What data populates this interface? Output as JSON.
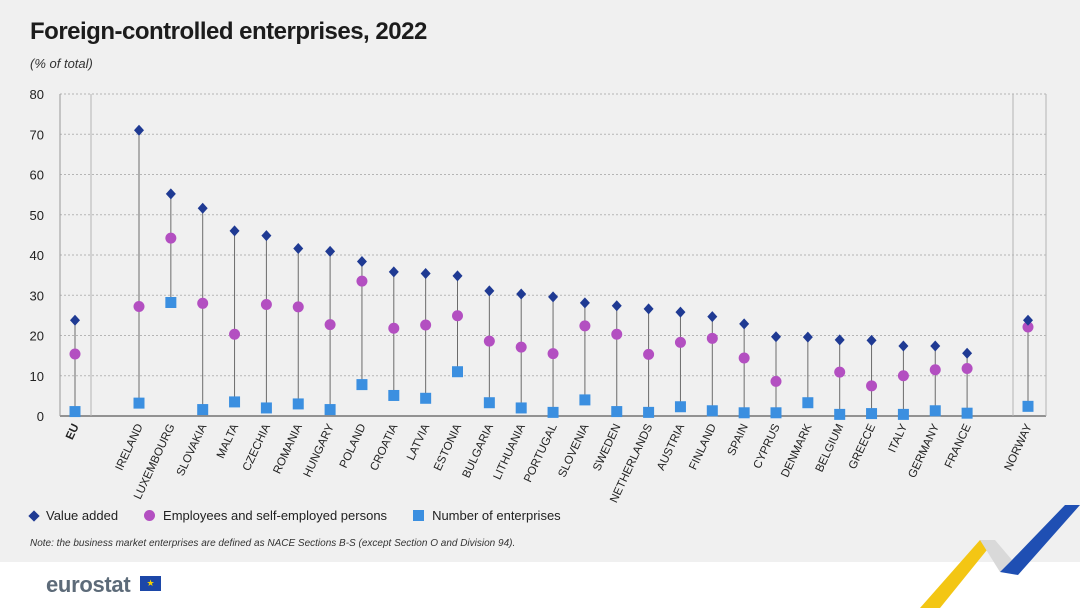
{
  "title": "Foreign-controlled enterprises, 2022",
  "subtitle": "(% of total)",
  "note": "Note: the business market enterprises are defined as NACE Sections B-S (except Section O and Division 94).",
  "brand": "eurostat",
  "legend": {
    "value_added": "Value added",
    "employees": "Employees and self-employed persons",
    "enterprises": "Number of enterprises"
  },
  "colors": {
    "value_added": "#1f3a93",
    "employees": "#b34fc1",
    "enterprises": "#3b8fe0",
    "panel": "#f0f0f0"
  },
  "chart_data": {
    "type": "scatter",
    "ylim": [
      0,
      80
    ],
    "yticks": [
      0,
      10,
      20,
      30,
      40,
      50,
      60,
      70,
      80
    ],
    "grid": true,
    "legend_position": "bottom-left",
    "categories": [
      "EU",
      "Ireland",
      "Luxembourg",
      "Slovakia",
      "Malta",
      "Czechia",
      "Romania",
      "Hungary",
      "Poland",
      "Croatia",
      "Latvia",
      "Estonia",
      "Bulgaria",
      "Lithuania",
      "Portugal",
      "Slovenia",
      "Sweden",
      "Netherlands",
      "Austria",
      "Finland",
      "Spain",
      "Cyprus",
      "Denmark",
      "Belgium",
      "Greece",
      "Italy",
      "Germany",
      "France",
      "Norway"
    ],
    "category_labels": [
      "EU",
      "IRELAND",
      "LUXEMBOURG",
      "SLOVAKIA",
      "MALTA",
      "CZECHIA",
      "ROMANIA",
      "HUNGARY",
      "POLAND",
      "CROATIA",
      "LATVIA",
      "ESTONIA",
      "BULGARIA",
      "LITHUANIA",
      "PORTUGAL",
      "SLOVENIA",
      "SWEDEN",
      "NETHERLANDS",
      "AUSTRIA",
      "FINLAND",
      "SPAIN",
      "CYPRUS",
      "DENMARK",
      "BELGIUM",
      "GREECE",
      "ITALY",
      "GERMANY",
      "FRANCE",
      "NORWAY"
    ],
    "series": [
      {
        "name": "Value added",
        "marker": "diamond",
        "values": [
          23.8,
          71.0,
          55.2,
          51.6,
          46.0,
          44.8,
          41.6,
          40.9,
          38.4,
          35.8,
          35.4,
          34.8,
          31.1,
          30.3,
          29.6,
          28.1,
          27.4,
          26.6,
          25.8,
          24.7,
          22.9,
          19.7,
          19.6,
          18.9,
          18.8,
          17.4,
          17.4,
          15.6,
          23.8
        ]
      },
      {
        "name": "Employees and self-employed persons",
        "marker": "circle",
        "values": [
          15.4,
          27.2,
          44.2,
          28.0,
          20.3,
          27.7,
          27.1,
          22.7,
          33.5,
          21.8,
          22.6,
          24.9,
          18.6,
          17.1,
          15.5,
          22.4,
          20.3,
          15.3,
          18.3,
          19.3,
          14.4,
          8.6,
          null,
          10.9,
          7.5,
          10.0,
          11.5,
          11.8,
          22.1
        ]
      },
      {
        "name": "Number of enterprises",
        "marker": "square",
        "values": [
          1.1,
          3.2,
          28.2,
          1.6,
          3.5,
          2.0,
          3.0,
          1.6,
          7.8,
          5.1,
          4.4,
          11.0,
          3.3,
          2.0,
          0.9,
          4.0,
          1.1,
          0.9,
          2.3,
          1.3,
          0.8,
          0.8,
          3.3,
          0.4,
          0.6,
          0.4,
          1.3,
          0.7,
          2.4
        ]
      }
    ]
  }
}
